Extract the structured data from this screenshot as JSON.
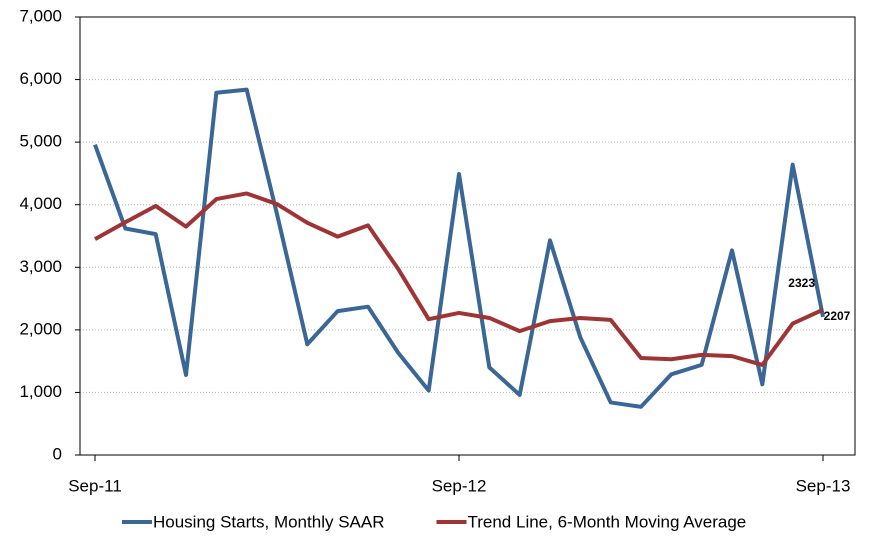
{
  "chart_data": {
    "type": "line",
    "categories": [
      "Sep-11",
      null,
      null,
      null,
      null,
      null,
      null,
      null,
      null,
      null,
      null,
      null,
      "Sep-12",
      null,
      null,
      null,
      null,
      null,
      null,
      null,
      null,
      null,
      null,
      null,
      "Sep-13"
    ],
    "series": [
      {
        "name": "Housing Starts, Monthly SAAR",
        "color": "#3b6796",
        "values": [
          4960,
          3620,
          3530,
          1280,
          5790,
          5840,
          3850,
          1770,
          2300,
          2370,
          1630,
          1030,
          4490,
          1400,
          960,
          3430,
          1880,
          840,
          770,
          1290,
          1440,
          3270,
          1130,
          4640,
          2207
        ]
      },
      {
        "name": "Trend Line, 6-Month Moving Average",
        "color": "#9e3434",
        "values": [
          3450,
          3720,
          3980,
          3650,
          4090,
          4180,
          4010,
          3710,
          3490,
          3670,
          2970,
          2170,
          2270,
          2190,
          1980,
          2140,
          2190,
          2160,
          1550,
          1530,
          1600,
          1580,
          1440,
          2100,
          2323
        ]
      }
    ],
    "ylim": [
      0,
      7000
    ],
    "yticks": [
      0,
      {
        "value": 1000,
        "label": "1,000"
      },
      {
        "value": 2000,
        "label": "2,000"
      },
      {
        "value": 3000,
        "label": "3,000"
      },
      {
        "value": 4000,
        "label": "4,000"
      },
      {
        "value": 5000,
        "label": "5,000"
      },
      {
        "value": 6000,
        "label": "6,000"
      },
      {
        "value": 7000,
        "label": "7,000"
      }
    ],
    "grid": true,
    "legend": "bottom"
  }
}
